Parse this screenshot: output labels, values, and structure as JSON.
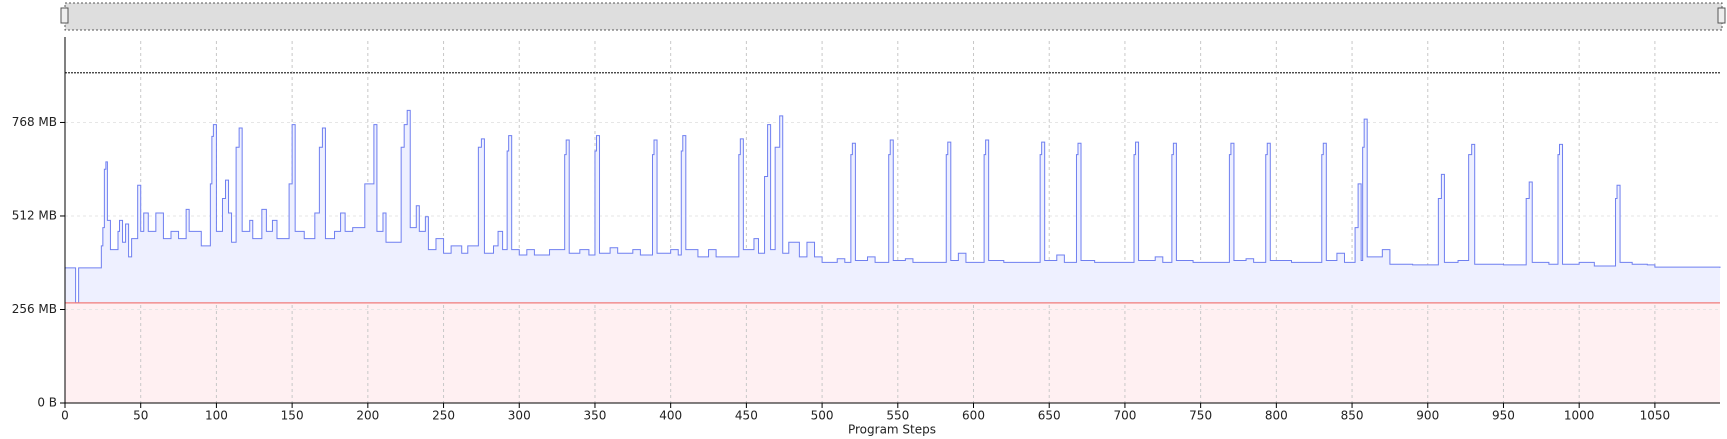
{
  "chart_data": {
    "type": "step-area",
    "xlabel": "Program Steps",
    "x": [
      0,
      7,
      9,
      24,
      25,
      26,
      27,
      28,
      30,
      35,
      36,
      38,
      40,
      42,
      44,
      48,
      50,
      52,
      55,
      60,
      65,
      70,
      75,
      80,
      82,
      90,
      96,
      97,
      98,
      100,
      104,
      106,
      108,
      110,
      113,
      115,
      117,
      122,
      124,
      130,
      133,
      137,
      140,
      148,
      150,
      152,
      158,
      165,
      168,
      170,
      172,
      178,
      182,
      185,
      190,
      198,
      204,
      206,
      210,
      212,
      222,
      224,
      226,
      228,
      232,
      234,
      238,
      240,
      245,
      250,
      255,
      262,
      266,
      273,
      275,
      277,
      283,
      286,
      289,
      292,
      293,
      295,
      300,
      305,
      310,
      320,
      330,
      331,
      333,
      340,
      346,
      350,
      351,
      353,
      360,
      365,
      375,
      380,
      388,
      389,
      391,
      400,
      405,
      407,
      408,
      410,
      418,
      425,
      430,
      445,
      446,
      448,
      455,
      458,
      462,
      464,
      466,
      469,
      472,
      474,
      478,
      485,
      490,
      495,
      500,
      510,
      515,
      519,
      520,
      522,
      530,
      535,
      544,
      545,
      547,
      555,
      560,
      582,
      583,
      585,
      590,
      595,
      607,
      608,
      610,
      620,
      644,
      645,
      647,
      655,
      660,
      668,
      669,
      671,
      680,
      706,
      707,
      709,
      720,
      725,
      731,
      732,
      734,
      745,
      769,
      770,
      772,
      780,
      785,
      793,
      794,
      796,
      810,
      830,
      831,
      833,
      840,
      845,
      852,
      854,
      856,
      857,
      858,
      860,
      870,
      875,
      890,
      907,
      909,
      911,
      920,
      927,
      929,
      931,
      950,
      965,
      967,
      969,
      980,
      986,
      987,
      989,
      1000,
      1010,
      1024,
      1025,
      1027,
      1035,
      1045,
      1050,
      1093
    ],
    "series": [
      {
        "color": "#6f7ff0",
        "fill": "#eef0ff",
        "values": [
          370,
          274,
          370,
          430,
          480,
          640,
          660,
          500,
          420,
          470,
          500,
          440,
          490,
          400,
          450,
          596,
          470,
          520,
          470,
          520,
          450,
          470,
          450,
          530,
          470,
          430,
          600,
          730,
          762,
          470,
          560,
          610,
          520,
          440,
          700,
          753,
          470,
          500,
          450,
          530,
          470,
          500,
          450,
          600,
          762,
          470,
          450,
          520,
          700,
          753,
          450,
          470,
          520,
          470,
          480,
          600,
          762,
          470,
          520,
          440,
          700,
          762,
          801,
          480,
          540,
          470,
          510,
          420,
          450,
          410,
          430,
          410,
          430,
          700,
          723,
          410,
          430,
          470,
          420,
          690,
          732,
          420,
          405,
          420,
          405,
          420,
          680,
          720,
          410,
          420,
          405,
          690,
          732,
          410,
          425,
          410,
          420,
          405,
          680,
          720,
          410,
          420,
          405,
          690,
          732,
          420,
          400,
          420,
          400,
          680,
          723,
          420,
          450,
          410,
          620,
          762,
          420,
          700,
          786,
          410,
          440,
          400,
          440,
          400,
          385,
          395,
          385,
          680,
          711,
          390,
          400,
          385,
          680,
          720,
          390,
          395,
          385,
          680,
          714,
          390,
          410,
          385,
          680,
          720,
          390,
          385,
          680,
          714,
          390,
          405,
          385,
          680,
          711,
          390,
          385,
          680,
          714,
          390,
          400,
          385,
          680,
          711,
          390,
          385,
          680,
          711,
          390,
          395,
          385,
          680,
          711,
          390,
          385,
          680,
          711,
          390,
          410,
          385,
          480,
          600,
          390,
          700,
          777,
          400,
          420,
          380,
          378,
          560,
          626,
          385,
          390,
          680,
          708,
          380,
          378,
          560,
          605,
          385,
          380,
          680,
          708,
          380,
          385,
          375,
          560,
          596,
          385,
          380,
          378,
          372,
          370
        ]
      }
    ],
    "hlines": [
      {
        "value": 274,
        "color": "#f07a7a",
        "fill": "#fff0f2"
      },
      {
        "value": 904,
        "color": "#333333",
        "dash": true
      }
    ],
    "xlim": [
      0,
      1093
    ],
    "ylim": [
      0,
      991
    ],
    "xticks": [
      0,
      50,
      100,
      150,
      200,
      250,
      300,
      350,
      400,
      450,
      500,
      550,
      600,
      650,
      700,
      750,
      800,
      850,
      900,
      950,
      1000,
      1050
    ],
    "yticks": [
      {
        "value": 0,
        "label": "0 B"
      },
      {
        "value": 256,
        "label": "256 MB"
      },
      {
        "value": 512,
        "label": "512 MB"
      },
      {
        "value": 768,
        "label": "768 MB"
      }
    ],
    "grid": true
  }
}
